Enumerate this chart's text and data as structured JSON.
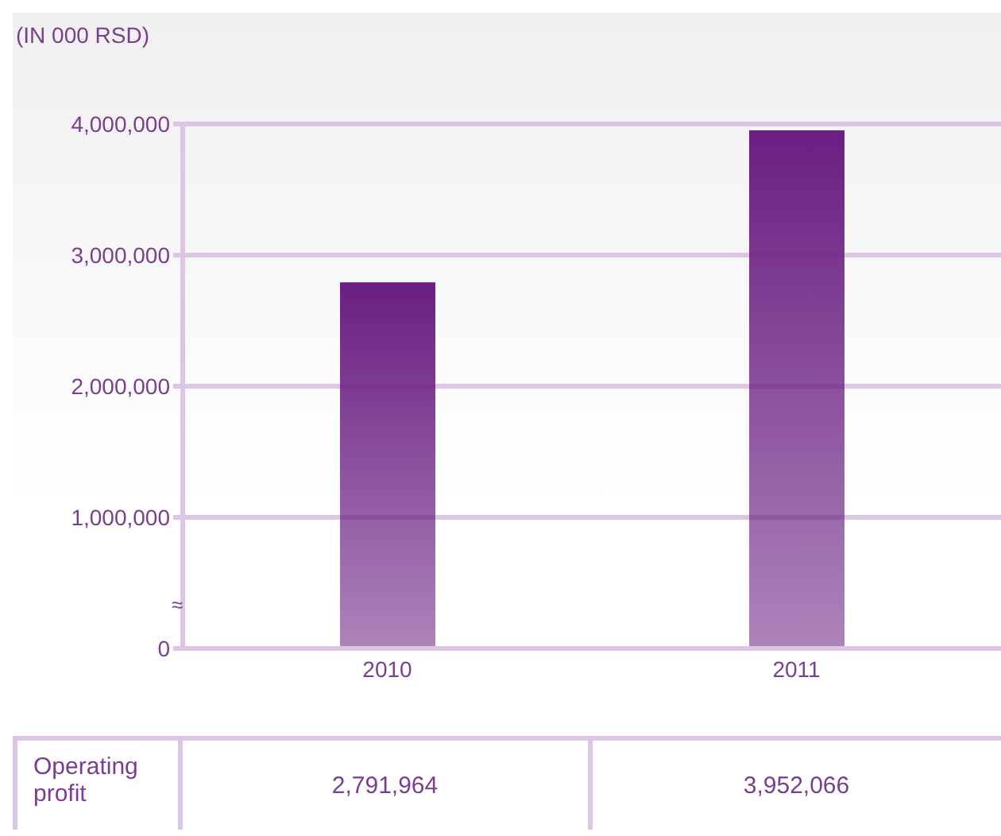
{
  "chart_data": {
    "type": "bar",
    "ylabel": "(IN 000 RSD)",
    "categories": [
      "2010",
      "2011"
    ],
    "series": [
      {
        "name": "Operating profit",
        "color": "#6a1f82",
        "values": [
          2791964,
          3952066
        ],
        "value_labels": [
          "2,791,964",
          "3,952,066"
        ]
      }
    ],
    "ylim": [
      0,
      4000000
    ],
    "yticks": [
      0,
      {
        "value": 1000000,
        "label": "1,000,000"
      },
      {
        "value": 2000000,
        "label": "2,000,000"
      },
      {
        "value": 3000000,
        "label": "3,000,000"
      },
      {
        "value": 4000000,
        "label": "4,000,000"
      }
    ],
    "grid": "y",
    "annotations": [
      "≈"
    ]
  }
}
